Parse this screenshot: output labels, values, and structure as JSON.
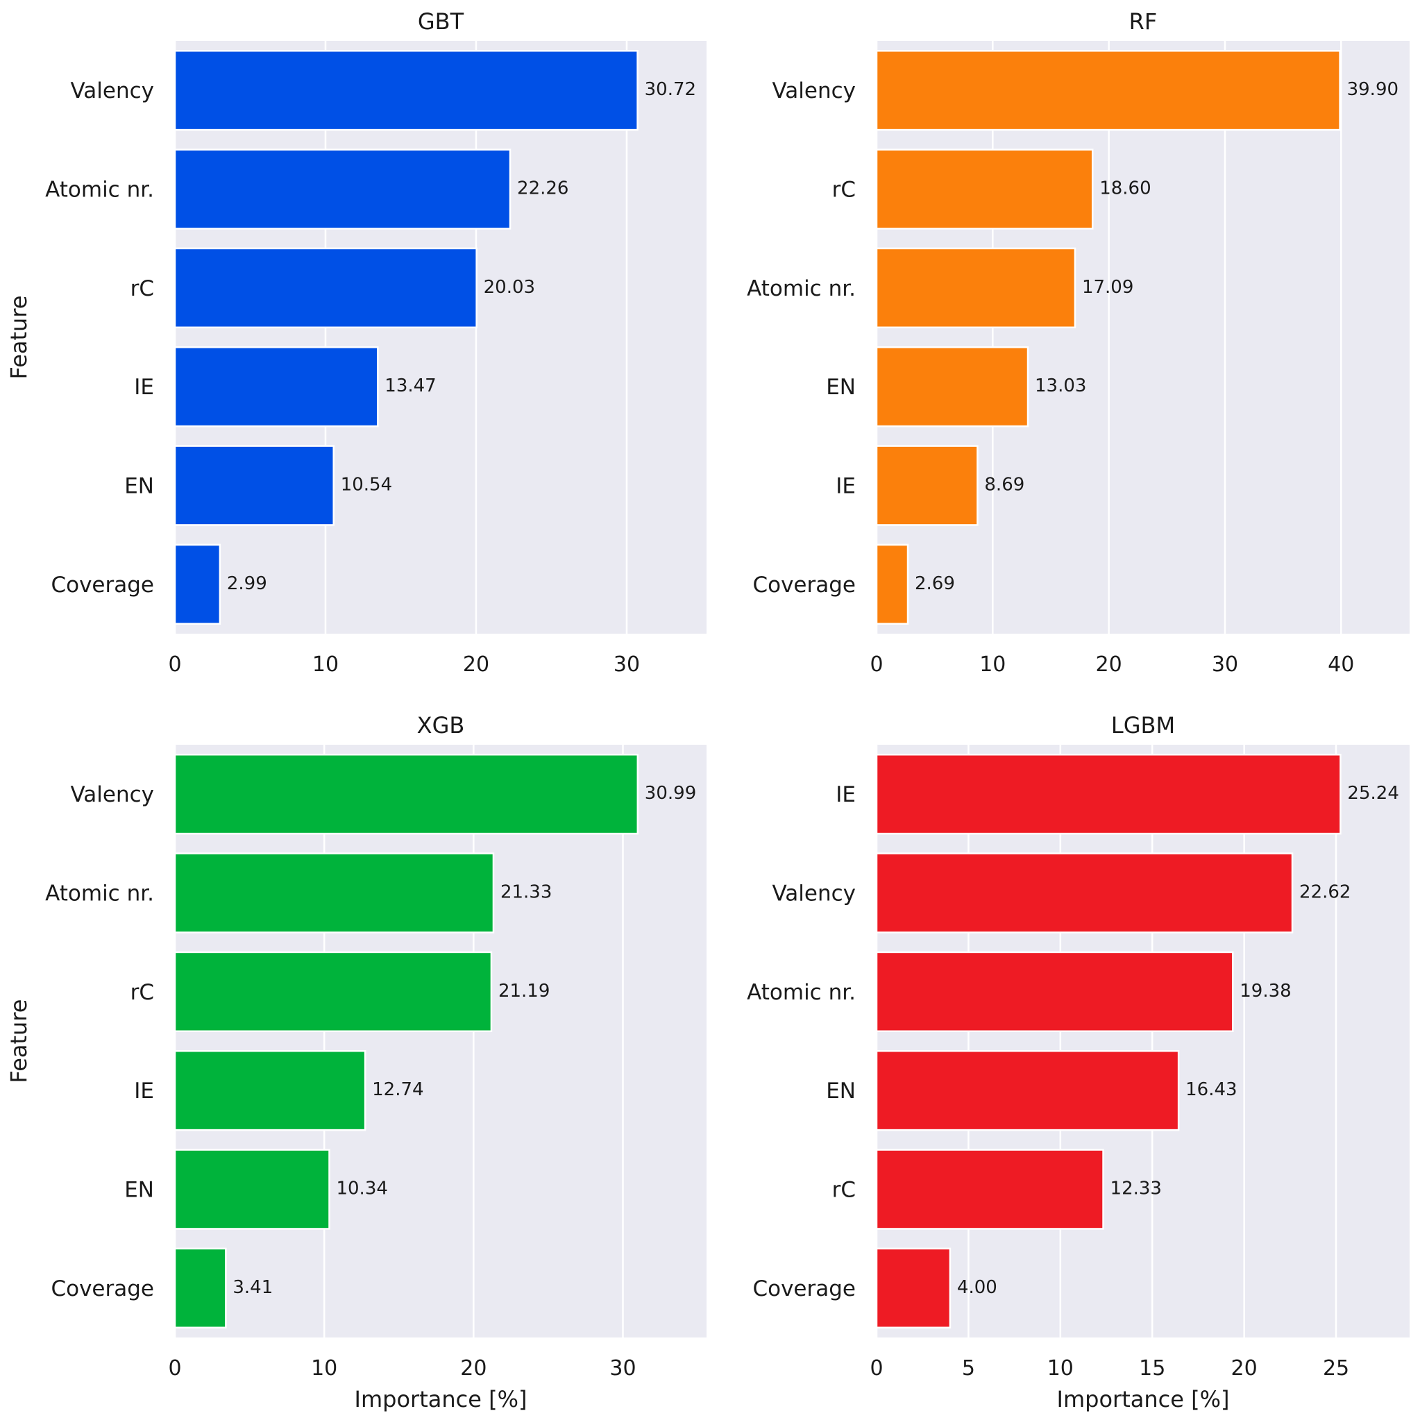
{
  "chart_data": [
    {
      "type": "bar",
      "orientation": "horizontal",
      "title": "GBT",
      "xlabel": "",
      "ylabel": "Feature",
      "color": "#0050e6",
      "categories": [
        "Valency",
        "Atomic nr.",
        "rC",
        "IE",
        "EN",
        "Coverage"
      ],
      "values": [
        30.72,
        22.26,
        20.03,
        13.47,
        10.54,
        2.99
      ],
      "labels": [
        "30.72",
        "22.26",
        "20.03",
        "13.47",
        "10.54",
        "2.99"
      ],
      "xlim": [
        0,
        35.3
      ],
      "xticks": [
        0,
        10,
        20,
        30
      ],
      "xtick_labels": [
        "0",
        "10",
        "20",
        "30"
      ],
      "grid": true
    },
    {
      "type": "bar",
      "orientation": "horizontal",
      "title": "RF",
      "xlabel": "",
      "ylabel": "",
      "color": "#fb800c",
      "categories": [
        "Valency",
        "rC",
        "Atomic nr.",
        "EN",
        "IE",
        "Coverage"
      ],
      "values": [
        39.9,
        18.6,
        17.09,
        13.03,
        8.69,
        2.69
      ],
      "labels": [
        "39.90",
        "18.60",
        "17.09",
        "13.03",
        "8.69",
        "2.69"
      ],
      "xlim": [
        0,
        45.9
      ],
      "xticks": [
        0,
        10,
        20,
        30,
        40
      ],
      "xtick_labels": [
        "0",
        "10",
        "20",
        "30",
        "40"
      ],
      "grid": true
    },
    {
      "type": "bar",
      "orientation": "horizontal",
      "title": "XGB",
      "xlabel": "Importance [%]",
      "ylabel": "Feature",
      "color": "#00b33b",
      "categories": [
        "Valency",
        "Atomic nr.",
        "rC",
        "IE",
        "EN",
        "Coverage"
      ],
      "values": [
        30.99,
        21.33,
        21.19,
        12.74,
        10.34,
        3.41
      ],
      "labels": [
        "30.99",
        "21.33",
        "21.19",
        "12.74",
        "10.34",
        "3.41"
      ],
      "xlim": [
        0,
        35.6
      ],
      "xticks": [
        0,
        10,
        20,
        30
      ],
      "xtick_labels": [
        "0",
        "10",
        "20",
        "30"
      ],
      "grid": true
    },
    {
      "type": "bar",
      "orientation": "horizontal",
      "title": "LGBM",
      "xlabel": "Importance [%]",
      "ylabel": "",
      "color": "#ee1b24",
      "categories": [
        "IE",
        "Valency",
        "Atomic nr.",
        "EN",
        "rC",
        "Coverage"
      ],
      "values": [
        25.24,
        22.62,
        19.38,
        16.43,
        12.33,
        4.0
      ],
      "labels": [
        "25.24",
        "22.62",
        "19.38",
        "16.43",
        "12.33",
        "4.00"
      ],
      "xlim": [
        0,
        29.0
      ],
      "xticks": [
        0,
        5,
        10,
        15,
        20,
        25
      ],
      "xtick_labels": [
        "0",
        "5",
        "10",
        "15",
        "20",
        "25"
      ],
      "grid": true
    }
  ]
}
